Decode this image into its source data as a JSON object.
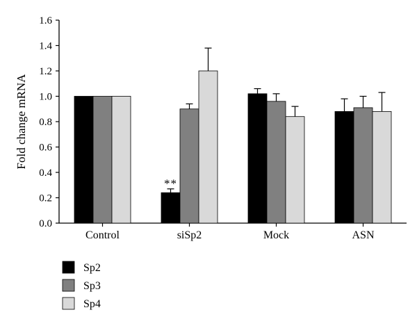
{
  "chart_data": {
    "type": "bar",
    "title": "",
    "xlabel": "",
    "ylabel": "Fold change mRNA",
    "ylim": [
      0,
      1.6
    ],
    "yticks": [
      "0.0",
      "0.2",
      "0.4",
      "0.6",
      "0.8",
      "1.0",
      "1.2",
      "1.4",
      "1.6"
    ],
    "categories": [
      "Control",
      "siSp2",
      "Mock",
      "ASN"
    ],
    "series": [
      {
        "name": "Sp2",
        "color": "#000000",
        "values": [
          1.0,
          0.24,
          1.02,
          0.88
        ],
        "errors": [
          0.0,
          0.03,
          0.04,
          0.1
        ]
      },
      {
        "name": "Sp3",
        "color": "#808080",
        "values": [
          1.0,
          0.9,
          0.96,
          0.91
        ],
        "errors": [
          0.0,
          0.04,
          0.06,
          0.09
        ]
      },
      {
        "name": "Sp4",
        "color": "#d9d9d9",
        "values": [
          1.0,
          1.2,
          0.84,
          0.88
        ],
        "errors": [
          0.0,
          0.18,
          0.08,
          0.15
        ]
      }
    ],
    "annotations": [
      {
        "text": "**",
        "category": "siSp2",
        "series": "Sp2"
      }
    ],
    "grid": false,
    "legend": "bottom-left"
  }
}
